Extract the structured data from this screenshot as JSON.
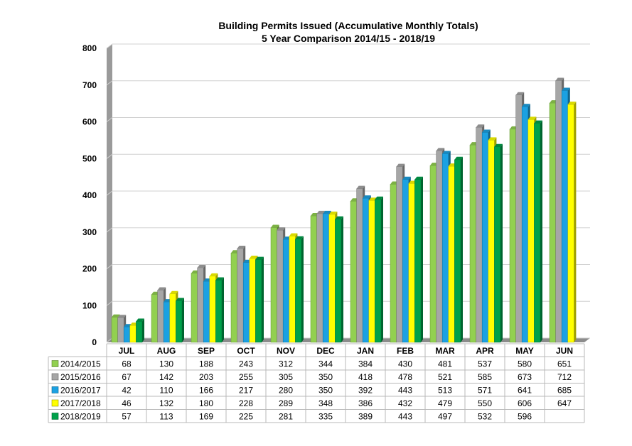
{
  "chart_data": {
    "type": "bar",
    "title_line1": "Building Permits Issued (Accumulative Monthly Totals)",
    "title_line2": "5 Year Comparison 2014/15 - 2018/19",
    "categories": [
      "JUL",
      "AUG",
      "SEP",
      "OCT",
      "NOV",
      "DEC",
      "JAN",
      "FEB",
      "MAR",
      "APR",
      "MAY",
      "JUN"
    ],
    "ylim": [
      0,
      800
    ],
    "yticks": [
      0,
      100,
      200,
      300,
      400,
      500,
      600,
      700,
      800
    ],
    "grid": true,
    "legend": "data table below chart",
    "series": [
      {
        "name": "2014/2015",
        "color": "#92d050",
        "values": [
          68,
          130,
          188,
          243,
          312,
          344,
          384,
          430,
          481,
          537,
          580,
          651
        ]
      },
      {
        "name": "2015/2016",
        "color": "#a6a6a6",
        "values": [
          67,
          142,
          203,
          255,
          305,
          350,
          418,
          478,
          521,
          585,
          673,
          712
        ]
      },
      {
        "name": "2016/2017",
        "color": "#1ba1e2",
        "values": [
          42,
          110,
          166,
          217,
          280,
          350,
          392,
          443,
          513,
          571,
          641,
          685
        ]
      },
      {
        "name": "2017/2018",
        "color": "#ffff00",
        "values": [
          46,
          132,
          180,
          228,
          289,
          348,
          386,
          432,
          479,
          550,
          606,
          647
        ]
      },
      {
        "name": "2018/2019",
        "color": "#00a14b",
        "values": [
          57,
          113,
          169,
          225,
          281,
          335,
          389,
          443,
          497,
          532,
          596,
          null
        ]
      }
    ]
  }
}
